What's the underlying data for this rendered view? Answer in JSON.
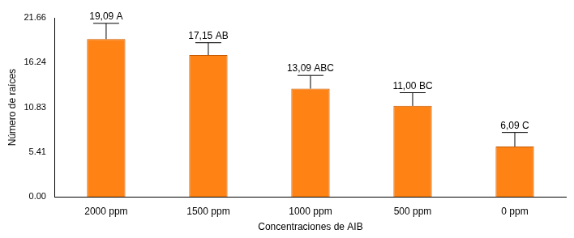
{
  "chart_data": {
    "type": "bar",
    "x_label": "Concentraciones de AIB",
    "y_label": "Número de raíces",
    "categories": [
      "2000 ppm",
      "1500 ppm",
      "1000 ppm",
      "500 ppm",
      "0 ppm"
    ],
    "values": [
      19.09,
      17.15,
      13.09,
      11.0,
      6.09
    ],
    "value_labels": [
      "19,09 A",
      "17,15 AB",
      "13,09 ABC",
      "11,00 BC",
      "6,09 C"
    ],
    "errors": [
      1.9,
      1.5,
      1.6,
      1.6,
      1.7
    ],
    "color": "#ff8214",
    "ylim": [
      0,
      21.66
    ],
    "yticks": [
      {
        "value": 0,
        "label": "0.00"
      },
      5.41,
      10.83,
      16.24,
      21.66
    ],
    "grid": false,
    "data_labels": true
  }
}
